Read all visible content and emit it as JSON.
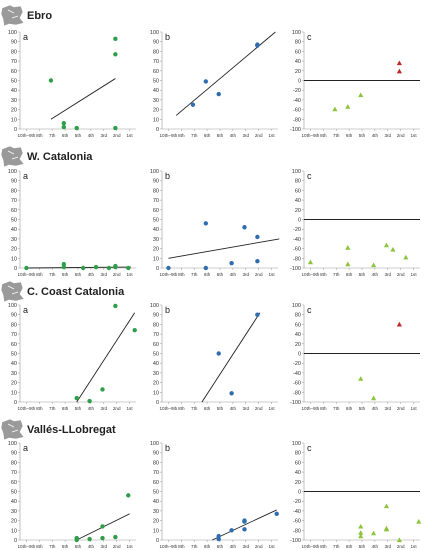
{
  "x_categories": [
    "10th–9th",
    "8th",
    "7th",
    "6th",
    "5th",
    "4th",
    "3rd",
    "2nd",
    "1st"
  ],
  "colors": {
    "green_dot": "#2e9e4a",
    "blue_dot": "#2f6db0",
    "red_triangle": "#c0282a",
    "green_triangle": "#8cc43e",
    "line": "#222222",
    "map_icon": "#9a9a9a"
  },
  "icons": [
    "map-icon"
  ],
  "regions": [
    {
      "title": "Ebro"
    },
    {
      "title": "W. Catalonia"
    },
    {
      "title": "C. Coast Catalonia"
    },
    {
      "title": "Vallés-LLobregat"
    }
  ],
  "chart_data": [
    {
      "region": "Ebro",
      "panel": "a",
      "type": "scatter",
      "marker": "circle",
      "color": "green",
      "ylim": [
        0,
        100
      ],
      "yticks": [
        0,
        10,
        20,
        30,
        40,
        50,
        60,
        70,
        80,
        90,
        100
      ],
      "points": [
        [
          1.9,
          50
        ],
        [
          2.9,
          2
        ],
        [
          2.9,
          6
        ],
        [
          3.9,
          1
        ],
        [
          6.9,
          93
        ],
        [
          6.9,
          77
        ],
        [
          6.9,
          1
        ]
      ],
      "trendline": [
        [
          1.9,
          10
        ],
        [
          6.9,
          52
        ]
      ]
    },
    {
      "region": "Ebro",
      "panel": "b",
      "type": "scatter",
      "marker": "circle",
      "color": "blue",
      "ylim": [
        0,
        100
      ],
      "yticks": [
        0,
        10,
        20,
        30,
        40,
        50,
        60,
        70,
        80,
        90,
        100
      ],
      "points": [
        [
          1.9,
          25
        ],
        [
          2.9,
          49
        ],
        [
          3.9,
          36
        ],
        [
          6.9,
          86
        ],
        [
          6.9,
          87
        ]
      ],
      "trendline": [
        [
          0.6,
          14
        ],
        [
          8.3,
          100
        ]
      ]
    },
    {
      "region": "Ebro",
      "panel": "c",
      "type": "scatter",
      "marker": "triangle",
      "ylim": [
        -100,
        100
      ],
      "yticks": [
        -100,
        -80,
        -60,
        -40,
        -20,
        0,
        20,
        40,
        60,
        80,
        100
      ],
      "zero_line": true,
      "points": [
        [
          1.9,
          -59,
          "green"
        ],
        [
          2.9,
          -54,
          "green"
        ],
        [
          3.9,
          -30,
          "green"
        ],
        [
          6.9,
          36,
          "red"
        ],
        [
          6.9,
          19,
          "red"
        ]
      ]
    },
    {
      "region": "W. Catalonia",
      "panel": "a",
      "type": "scatter",
      "marker": "circle",
      "color": "green",
      "ylim": [
        0,
        100
      ],
      "yticks": [
        0,
        10,
        20,
        30,
        40,
        50,
        60,
        70,
        80,
        90,
        100
      ],
      "points": [
        [
          0,
          0
        ],
        [
          2.9,
          1
        ],
        [
          2.9,
          4
        ],
        [
          4.4,
          0
        ],
        [
          5.4,
          1
        ],
        [
          6.4,
          0
        ],
        [
          6.9,
          1
        ],
        [
          6.9,
          2
        ],
        [
          7.9,
          0
        ]
      ],
      "trendline": [
        [
          0,
          0
        ],
        [
          8.1,
          1
        ]
      ]
    },
    {
      "region": "W. Catalonia",
      "panel": "b",
      "type": "scatter",
      "marker": "circle",
      "color": "blue",
      "ylim": [
        0,
        100
      ],
      "yticks": [
        0,
        10,
        20,
        30,
        40,
        50,
        60,
        70,
        80,
        90,
        100
      ],
      "points": [
        [
          0,
          0
        ],
        [
          2.9,
          46
        ],
        [
          2.9,
          0
        ],
        [
          4.9,
          5
        ],
        [
          5.9,
          42
        ],
        [
          6.9,
          32
        ],
        [
          6.9,
          7
        ]
      ],
      "trendline": [
        [
          0,
          10
        ],
        [
          8.6,
          30
        ]
      ]
    },
    {
      "region": "W. Catalonia",
      "panel": "c",
      "type": "scatter",
      "marker": "triangle",
      "ylim": [
        -100,
        100
      ],
      "yticks": [
        -100,
        -80,
        -60,
        -40,
        -20,
        0,
        20,
        40,
        60,
        80,
        100
      ],
      "zero_line": true,
      "points": [
        [
          0,
          -88,
          "green"
        ],
        [
          2.9,
          -58,
          "green"
        ],
        [
          2.9,
          -92,
          "green"
        ],
        [
          4.9,
          -94,
          "green"
        ],
        [
          5.9,
          -53,
          "green"
        ],
        [
          6.4,
          -62,
          "green"
        ],
        [
          7.4,
          -78,
          "green"
        ]
      ]
    },
    {
      "region": "C. Coast Catalonia",
      "panel": "a",
      "type": "scatter",
      "marker": "circle",
      "color": "green",
      "ylim": [
        0,
        100
      ],
      "yticks": [
        0,
        10,
        20,
        30,
        40,
        50,
        60,
        70,
        80,
        90,
        100
      ],
      "points": [
        [
          3.9,
          4
        ],
        [
          4.9,
          1
        ],
        [
          5.9,
          13
        ],
        [
          6.9,
          99
        ],
        [
          8.4,
          74
        ]
      ],
      "trendline": [
        [
          3.9,
          0
        ],
        [
          8.4,
          92
        ]
      ]
    },
    {
      "region": "C. Coast Catalonia",
      "panel": "b",
      "type": "scatter",
      "marker": "circle",
      "color": "blue",
      "ylim": [
        0,
        100
      ],
      "yticks": [
        0,
        10,
        20,
        30,
        40,
        50,
        60,
        70,
        80,
        90,
        100
      ],
      "points": [
        [
          3.9,
          50
        ],
        [
          4.9,
          9
        ],
        [
          6.9,
          90
        ]
      ],
      "trendline": [
        [
          2.6,
          0
        ],
        [
          7.1,
          92
        ]
      ]
    },
    {
      "region": "C. Coast Catalonia",
      "panel": "c",
      "type": "scatter",
      "marker": "triangle",
      "ylim": [
        -100,
        100
      ],
      "yticks": [
        -100,
        -80,
        -60,
        -40,
        -20,
        0,
        20,
        40,
        60,
        80,
        100
      ],
      "zero_line": true,
      "points": [
        [
          6.9,
          60,
          "red"
        ],
        [
          3.9,
          -52,
          "green"
        ],
        [
          4.9,
          -92,
          "green"
        ]
      ]
    },
    {
      "region": "Vallés-LLobregat",
      "panel": "a",
      "type": "scatter",
      "marker": "circle",
      "color": "green",
      "ylim": [
        0,
        100
      ],
      "yticks": [
        0,
        10,
        20,
        30,
        40,
        50,
        60,
        70,
        80,
        90,
        100
      ],
      "points": [
        [
          3.9,
          2
        ],
        [
          3.9,
          0
        ],
        [
          4.9,
          1
        ],
        [
          5.9,
          14
        ],
        [
          5.9,
          2
        ],
        [
          6.9,
          3
        ],
        [
          7.9,
          46
        ]
      ],
      "trendline": [
        [
          3.9,
          0
        ],
        [
          8.0,
          27
        ]
      ]
    },
    {
      "region": "Vallés-LLobregat",
      "panel": "b",
      "type": "scatter",
      "marker": "circle",
      "color": "blue",
      "ylim": [
        0,
        100
      ],
      "yticks": [
        0,
        10,
        20,
        30,
        40,
        50,
        60,
        70,
        80,
        90,
        100
      ],
      "points": [
        [
          3.9,
          1
        ],
        [
          3.9,
          4
        ],
        [
          4.9,
          10
        ],
        [
          5.9,
          11
        ],
        [
          5.9,
          19
        ],
        [
          5.9,
          20
        ],
        [
          8.4,
          27
        ]
      ],
      "trendline": [
        [
          3.4,
          0
        ],
        [
          8.4,
          31
        ]
      ]
    },
    {
      "region": "Vallés-LLobregat",
      "panel": "c",
      "type": "scatter",
      "marker": "triangle",
      "ylim": [
        -100,
        100
      ],
      "yticks": [
        -100,
        -80,
        -60,
        -40,
        -20,
        0,
        20,
        40,
        60,
        80,
        100
      ],
      "zero_line": true,
      "points": [
        [
          3.9,
          -72,
          "green"
        ],
        [
          3.9,
          -85,
          "green"
        ],
        [
          3.9,
          -92,
          "green"
        ],
        [
          4.9,
          -86,
          "green"
        ],
        [
          5.9,
          -30,
          "green"
        ],
        [
          5.9,
          -76,
          "green"
        ],
        [
          5.9,
          -78,
          "green"
        ],
        [
          6.9,
          -100,
          "green"
        ],
        [
          8.4,
          -62,
          "green"
        ]
      ]
    }
  ]
}
